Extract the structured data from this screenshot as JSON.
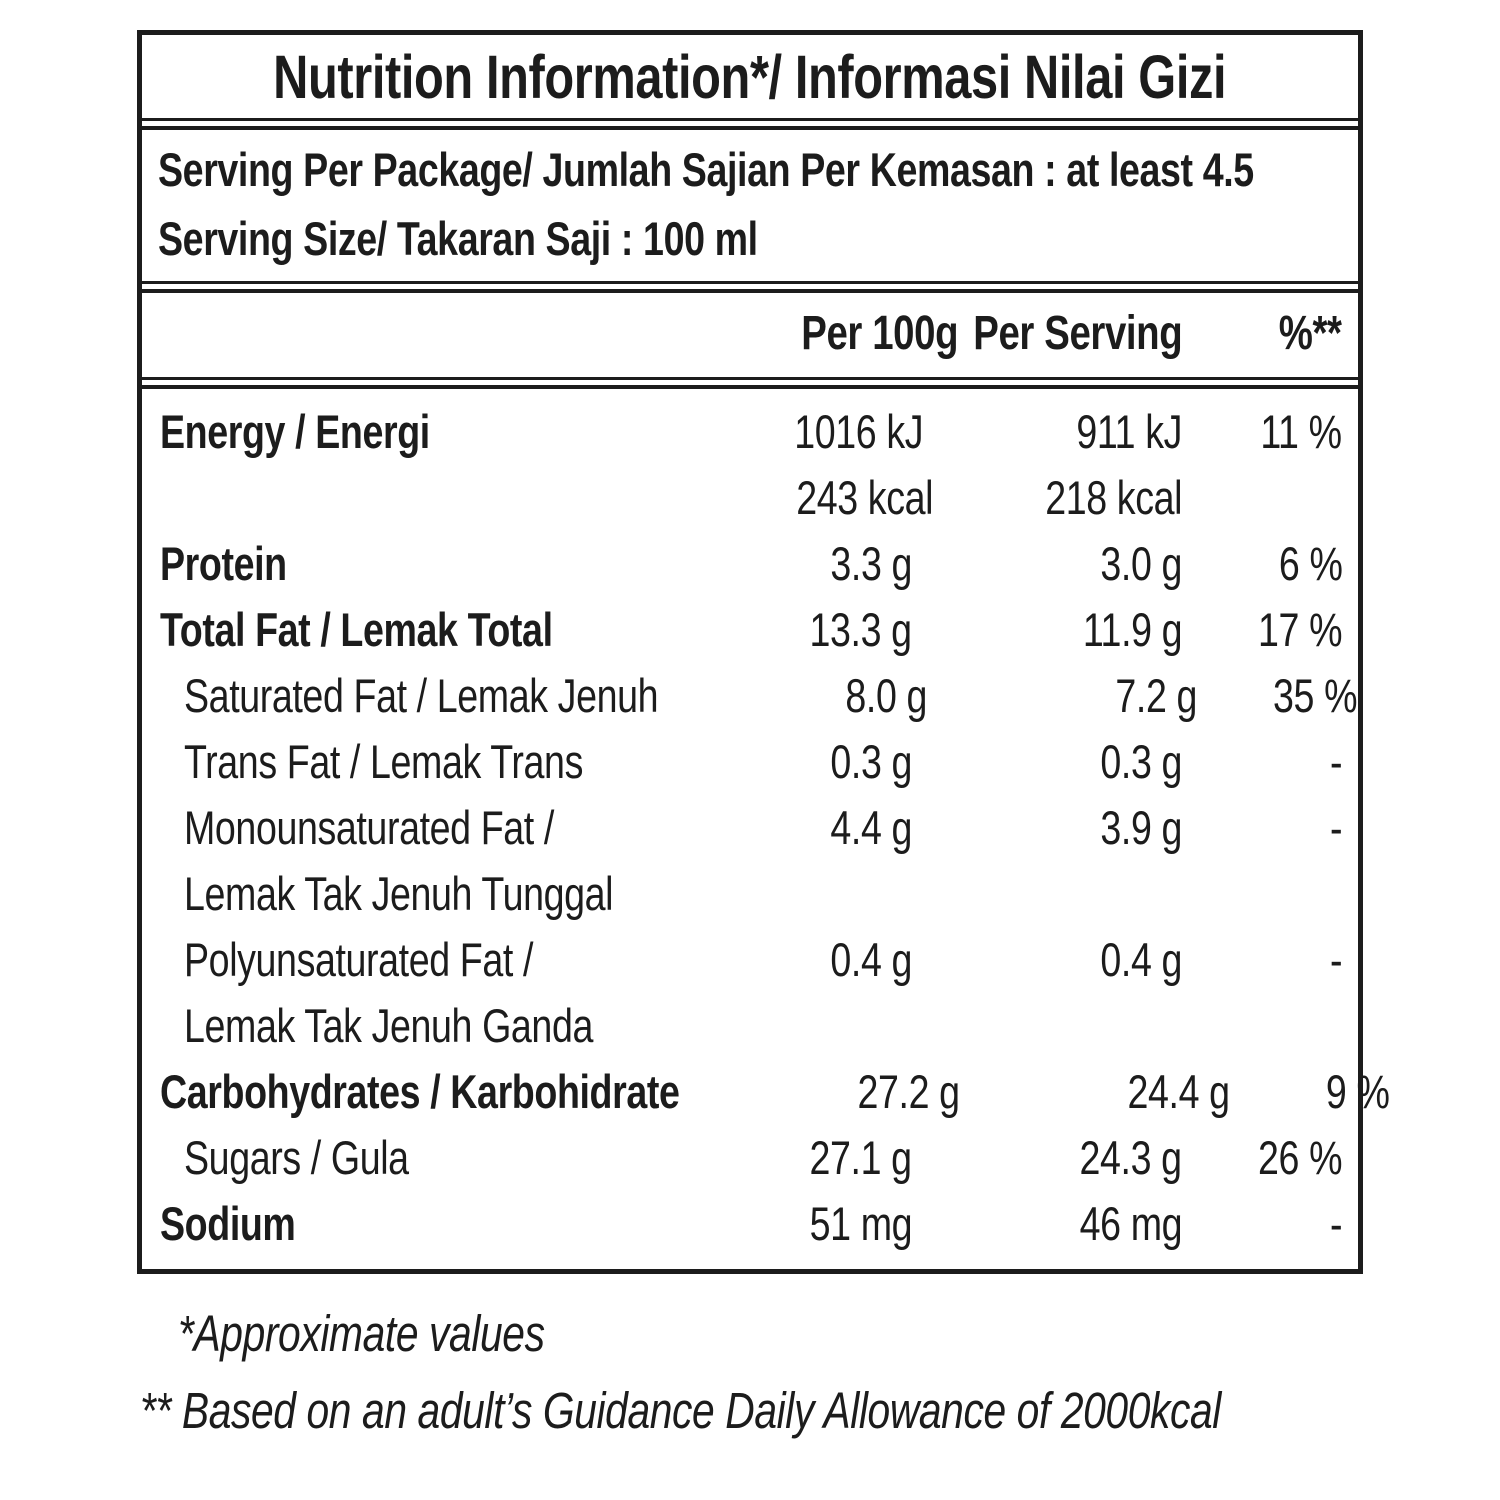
{
  "title": "Nutrition Information*/ Informasi Nilai Gizi",
  "serving": {
    "line1": "Serving Per Package/ Jumlah Sajian Per Kemasan : at least 4.5",
    "line2": "Serving Size/ Takaran Saji : 100 ml"
  },
  "columns": {
    "per100g": "Per 100g",
    "per_serving": "Per Serving",
    "percent": "%**"
  },
  "rows": [
    {
      "label": "Energy / Energi",
      "bold": true,
      "indent": false,
      "per100g": "1016 kJ",
      "per_serving": "911 kJ",
      "percent": "11 %"
    },
    {
      "label": "",
      "bold": false,
      "indent": false,
      "per100g": "243 kcal",
      "per_serving": "218 kcal",
      "percent": ""
    },
    {
      "label": "Protein",
      "bold": true,
      "indent": false,
      "per100g": "3.3 g",
      "per_serving": "3.0 g",
      "percent": "6 %"
    },
    {
      "label": "Total Fat / Lemak Total",
      "bold": true,
      "indent": false,
      "per100g": "13.3 g",
      "per_serving": "11.9 g",
      "percent": "17 %"
    },
    {
      "label": "Saturated Fat / Lemak Jenuh",
      "bold": false,
      "indent": true,
      "per100g": "8.0 g",
      "per_serving": "7.2 g",
      "percent": "35 %"
    },
    {
      "label": "Trans Fat / Lemak Trans",
      "bold": false,
      "indent": true,
      "per100g": "0.3 g",
      "per_serving": "0.3 g",
      "percent": "-"
    },
    {
      "label": "Monounsaturated Fat /",
      "bold": false,
      "indent": true,
      "per100g": "4.4 g",
      "per_serving": "3.9 g",
      "percent": "-"
    },
    {
      "label": "Lemak Tak Jenuh Tunggal",
      "bold": false,
      "indent": true,
      "per100g": "",
      "per_serving": "",
      "percent": ""
    },
    {
      "label": "Polyunsaturated Fat /",
      "bold": false,
      "indent": true,
      "per100g": "0.4 g",
      "per_serving": "0.4 g",
      "percent": "-"
    },
    {
      "label": "Lemak Tak Jenuh Ganda",
      "bold": false,
      "indent": true,
      "per100g": "",
      "per_serving": "",
      "percent": ""
    },
    {
      "label": "Carbohydrates / Karbohidrate",
      "bold": true,
      "indent": false,
      "per100g": "27.2 g",
      "per_serving": "24.4 g",
      "percent": "9 %"
    },
    {
      "label": "Sugars / Gula",
      "bold": false,
      "indent": true,
      "per100g": "27.1 g",
      "per_serving": "24.3 g",
      "percent": "26 %"
    },
    {
      "label": "Sodium",
      "bold": true,
      "indent": false,
      "per100g": "51 mg",
      "per_serving": "46 mg",
      "percent": "-"
    }
  ],
  "footnotes": [
    "*Approximate values",
    "** Based on an adult’s Guidance Daily Allowance of 2000kcal"
  ],
  "colors": {
    "text": "#1c1c1c",
    "border": "#1c1c1c",
    "background": "#ffffff"
  }
}
